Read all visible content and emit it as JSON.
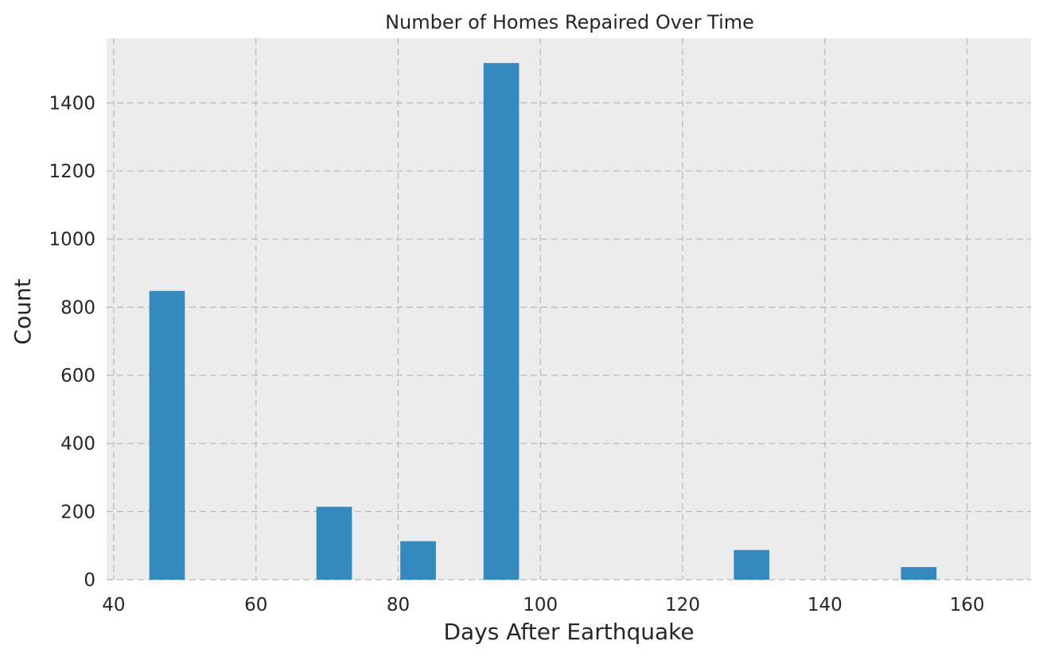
{
  "chart_data": {
    "type": "bar",
    "title": "Number of Homes Repaired Over Time",
    "xlabel": "Days After Earthquake",
    "ylabel": "Count",
    "xlim": [
      39,
      169
    ],
    "ylim": [
      0,
      1590
    ],
    "xticks": [
      40,
      60,
      80,
      100,
      120,
      140,
      160
    ],
    "yticks": [
      0,
      200,
      400,
      600,
      800,
      1000,
      1200,
      1400
    ],
    "grid": true,
    "legend": "none",
    "bars": [
      {
        "x_start": 45,
        "x_end": 50,
        "value": 848
      },
      {
        "x_start": 68.5,
        "x_end": 73.5,
        "value": 214
      },
      {
        "x_start": 80.3,
        "x_end": 85.3,
        "value": 113
      },
      {
        "x_start": 92,
        "x_end": 97,
        "value": 1517
      },
      {
        "x_start": 127.2,
        "x_end": 132.2,
        "value": 87
      },
      {
        "x_start": 150.7,
        "x_end": 155.7,
        "value": 37
      }
    ],
    "colors": {
      "bar": "#348abd",
      "plot_background": "#ececec",
      "grid": "#b8b8b8"
    }
  }
}
